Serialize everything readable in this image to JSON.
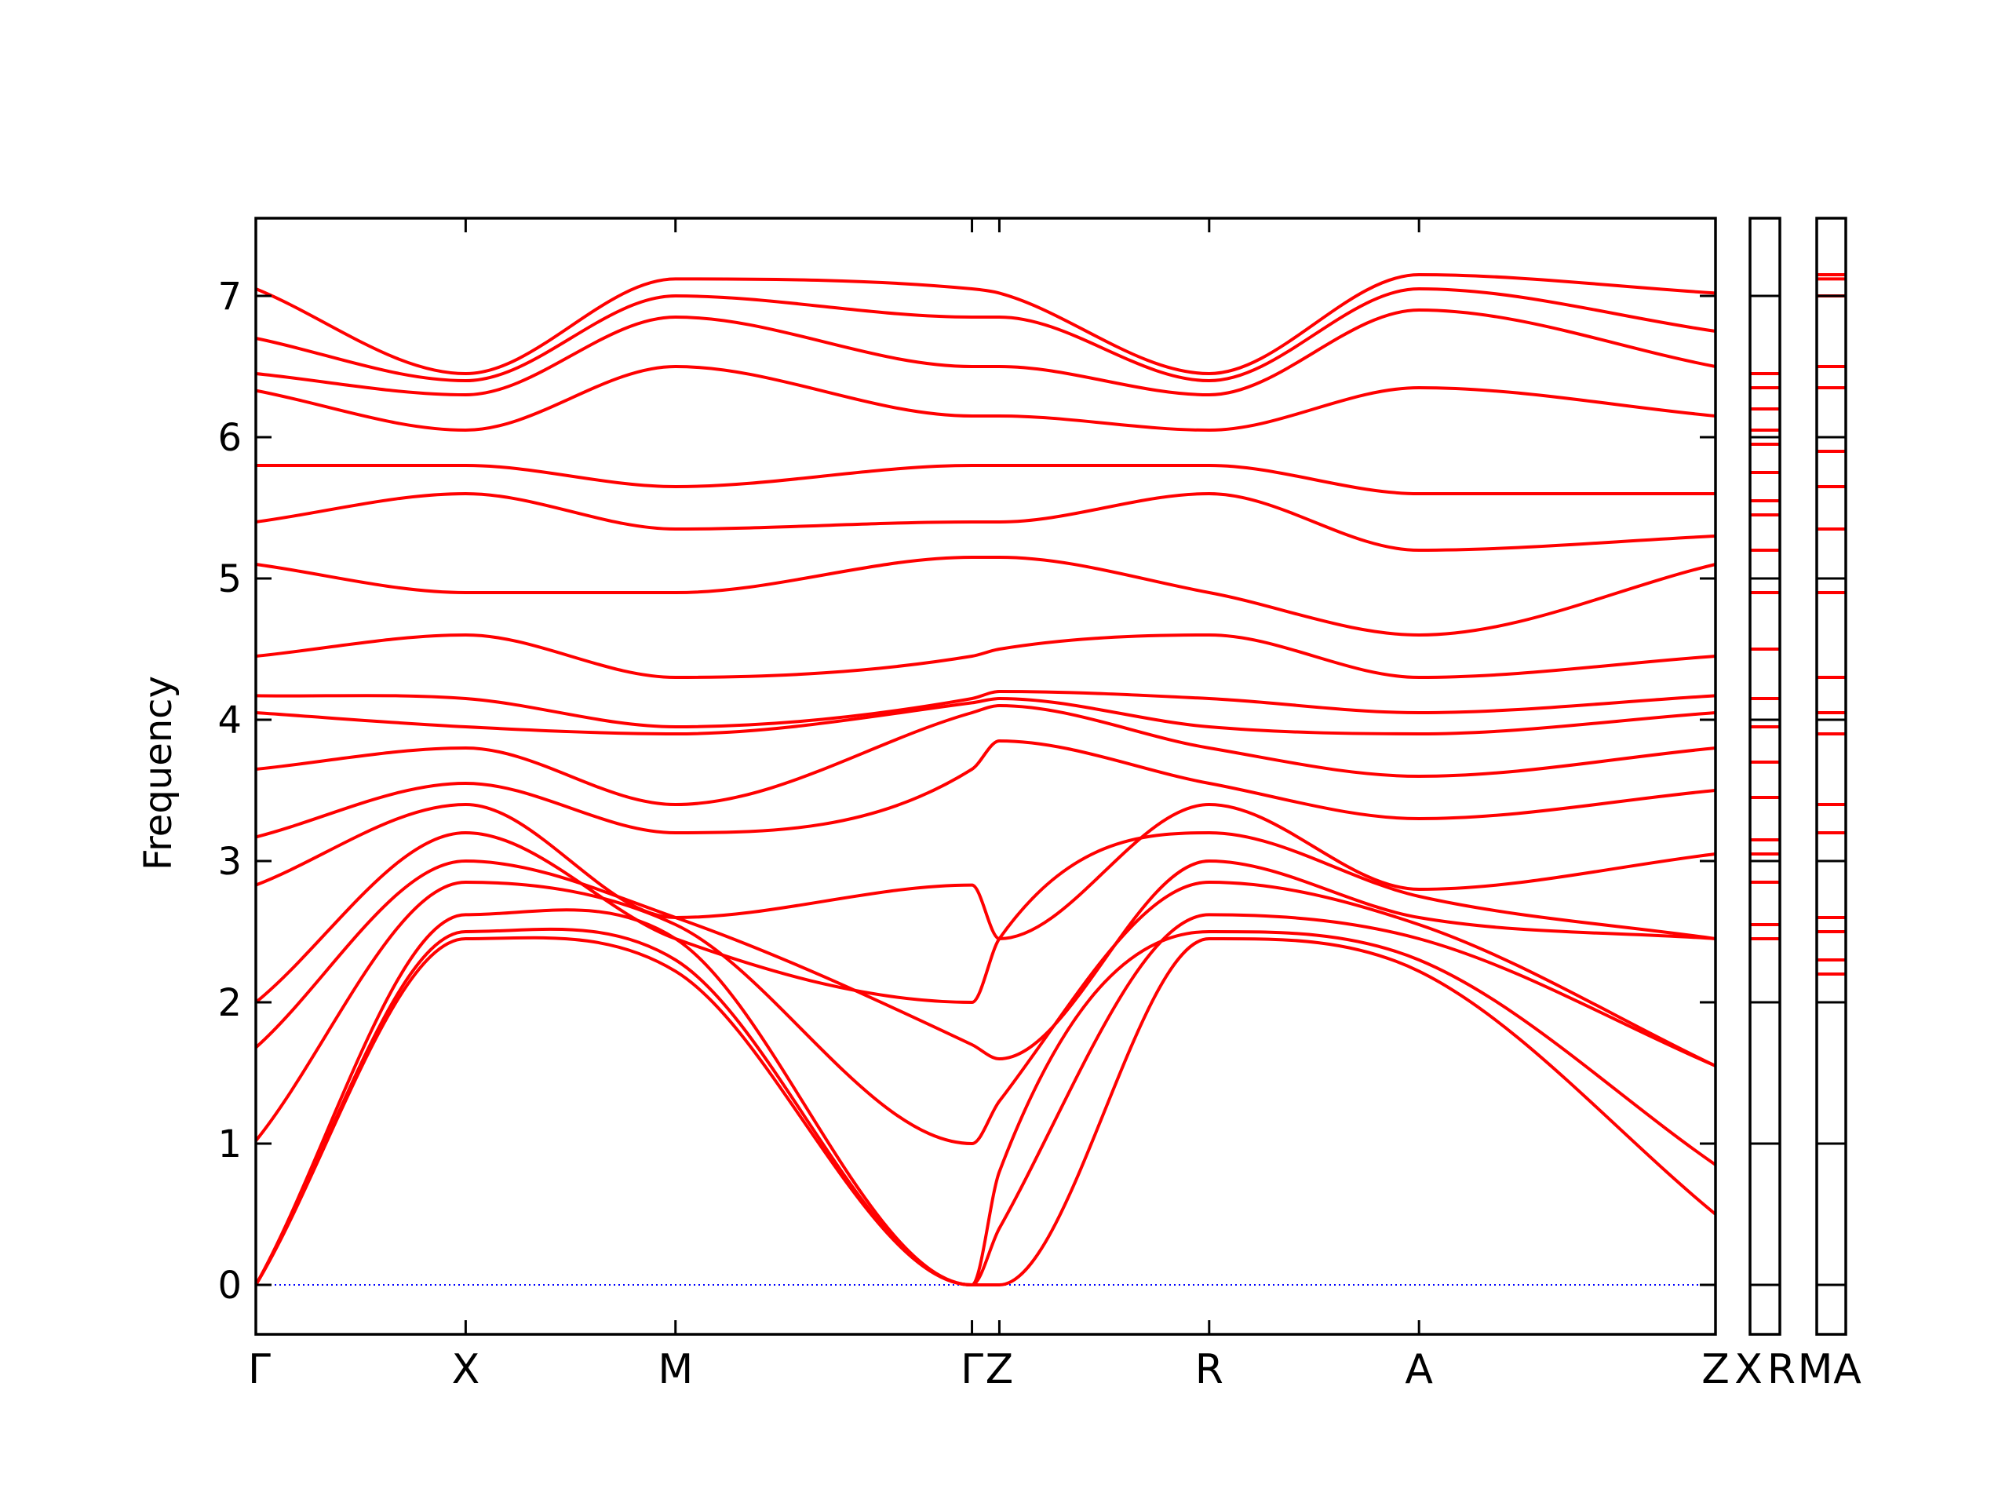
{
  "chart_data": {
    "type": "line",
    "title": "",
    "xlabel": "",
    "ylabel": "Frequency",
    "ylim": [
      -0.35,
      7.55
    ],
    "yticks": [
      0,
      1,
      2,
      3,
      4,
      5,
      6,
      7
    ],
    "grid": false,
    "legend": "none",
    "band_color": "#ff0000",
    "zero_line_color": "#0000ff",
    "main_panel": {
      "x_range": [
        0,
        3.2
      ],
      "kpoints": [
        {
          "label": "Γ",
          "x": 0.0
        },
        {
          "label": "X",
          "x": 0.46
        },
        {
          "label": "M",
          "x": 0.92
        },
        {
          "label": "Γ",
          "x": 1.57
        },
        {
          "label": "Z",
          "x": 1.63
        },
        {
          "label": "R",
          "x": 2.09
        },
        {
          "label": "A",
          "x": 2.55
        },
        {
          "label": "Z",
          "x": 3.2
        }
      ],
      "bands": [
        {
          "name": "",
          "x": [
            0,
            0.46,
            0.92,
            1.57,
            1.63,
            2.09,
            2.55,
            3.2
          ],
          "y": [
            0.0,
            2.45,
            2.22,
            0.0,
            0.0,
            2.45,
            2.22,
            0.5
          ]
        },
        {
          "name": "",
          "x": [
            0,
            0.46,
            0.92,
            1.57,
            1.63,
            2.09,
            2.55,
            3.2
          ],
          "y": [
            0.0,
            2.5,
            2.3,
            0.0,
            0.8,
            2.5,
            2.3,
            0.85
          ]
        },
        {
          "name": "",
          "x": [
            0,
            0.46,
            0.92,
            1.57,
            1.63,
            2.09,
            2.55,
            3.2
          ],
          "y": [
            0.0,
            2.62,
            2.45,
            0.0,
            0.4,
            2.62,
            2.45,
            1.55
          ]
        },
        {
          "name": "",
          "x": [
            0,
            0.46,
            0.92,
            1.57,
            1.63,
            2.09,
            2.55,
            3.2
          ],
          "y": [
            1.02,
            2.85,
            2.55,
            1.0,
            1.3,
            2.85,
            2.55,
            1.55
          ]
        },
        {
          "name": "",
          "x": [
            0,
            0.46,
            0.92,
            1.57,
            1.63,
            2.09,
            2.55,
            3.2
          ],
          "y": [
            1.68,
            3.0,
            2.6,
            1.7,
            1.6,
            3.0,
            2.6,
            2.45
          ]
        },
        {
          "name": "",
          "x": [
            0,
            0.46,
            0.92,
            1.57,
            1.63,
            2.09,
            2.55,
            3.2
          ],
          "y": [
            2.0,
            3.2,
            2.45,
            2.0,
            2.45,
            3.2,
            2.75,
            2.45
          ]
        },
        {
          "name": "",
          "x": [
            0,
            0.46,
            0.92,
            1.57,
            1.63,
            2.09,
            2.55,
            3.2
          ],
          "y": [
            2.83,
            3.4,
            2.6,
            2.83,
            2.45,
            3.4,
            2.8,
            3.05
          ]
        },
        {
          "name": "",
          "x": [
            0,
            0.46,
            0.92,
            1.57,
            1.63,
            2.09,
            2.55,
            3.2
          ],
          "y": [
            3.17,
            3.55,
            3.2,
            3.65,
            3.85,
            3.55,
            3.3,
            3.5
          ]
        },
        {
          "name": "",
          "x": [
            0,
            0.46,
            0.92,
            1.57,
            1.63,
            2.09,
            2.55,
            3.2
          ],
          "y": [
            3.65,
            3.8,
            3.4,
            4.05,
            4.1,
            3.8,
            3.6,
            3.8
          ]
        },
        {
          "name": "",
          "x": [
            0,
            0.46,
            0.92,
            1.57,
            1.63,
            2.09,
            2.55,
            3.2
          ],
          "y": [
            4.05,
            3.95,
            3.9,
            4.12,
            4.15,
            3.95,
            3.9,
            4.05
          ]
        },
        {
          "name": "",
          "x": [
            0,
            0.46,
            0.92,
            1.57,
            1.63,
            2.09,
            2.55,
            3.2
          ],
          "y": [
            4.17,
            4.15,
            3.95,
            4.15,
            4.2,
            4.15,
            4.05,
            4.17
          ]
        },
        {
          "name": "",
          "x": [
            0,
            0.46,
            0.92,
            1.57,
            1.63,
            2.09,
            2.55,
            3.2
          ],
          "y": [
            4.45,
            4.6,
            4.3,
            4.45,
            4.5,
            4.6,
            4.3,
            4.45
          ]
        },
        {
          "name": "",
          "x": [
            0,
            0.46,
            0.92,
            1.57,
            1.63,
            2.09,
            2.55,
            3.2
          ],
          "y": [
            5.1,
            4.9,
            4.9,
            5.15,
            5.15,
            4.9,
            4.6,
            5.1
          ]
        },
        {
          "name": "",
          "x": [
            0,
            0.46,
            0.92,
            1.57,
            1.63,
            2.09,
            2.55,
            3.2
          ],
          "y": [
            5.4,
            5.6,
            5.35,
            5.4,
            5.4,
            5.6,
            5.2,
            5.3
          ]
        },
        {
          "name": "",
          "x": [
            0,
            0.46,
            0.92,
            1.57,
            1.63,
            2.09,
            2.55,
            3.2
          ],
          "y": [
            5.8,
            5.8,
            5.65,
            5.8,
            5.8,
            5.8,
            5.6,
            5.6
          ]
        },
        {
          "name": "",
          "x": [
            0,
            0.46,
            0.92,
            1.57,
            1.63,
            2.09,
            2.55,
            3.2
          ],
          "y": [
            6.33,
            6.05,
            6.5,
            6.15,
            6.15,
            6.05,
            6.35,
            6.15
          ]
        },
        {
          "name": "",
          "x": [
            0,
            0.46,
            0.92,
            1.57,
            1.63,
            2.09,
            2.55,
            3.2
          ],
          "y": [
            6.45,
            6.3,
            6.85,
            6.5,
            6.5,
            6.3,
            6.9,
            6.5
          ]
        },
        {
          "name": "",
          "x": [
            0,
            0.46,
            0.92,
            1.57,
            1.63,
            2.09,
            2.55,
            3.2
          ],
          "y": [
            6.7,
            6.4,
            7.0,
            6.85,
            6.85,
            6.4,
            7.05,
            6.75
          ]
        },
        {
          "name": "",
          "x": [
            0,
            0.46,
            0.92,
            1.57,
            1.63,
            2.09,
            2.55,
            3.2
          ],
          "y": [
            7.05,
            6.45,
            7.12,
            7.05,
            7.02,
            6.45,
            7.15,
            7.02
          ]
        }
      ]
    },
    "side_panels": [
      {
        "labels": [
          "X",
          "R"
        ],
        "levels": [
          2.45,
          2.55,
          2.85,
          3.05,
          3.15,
          3.45,
          3.7,
          3.95,
          4.15,
          4.5,
          4.9,
          5.2,
          5.45,
          5.55,
          5.75,
          5.95,
          6.05,
          6.2,
          6.35,
          6.45
        ]
      },
      {
        "labels": [
          "M",
          "A"
        ],
        "levels": [
          2.2,
          2.3,
          2.5,
          2.6,
          3.2,
          3.4,
          3.9,
          4.05,
          4.3,
          4.9,
          5.35,
          5.65,
          5.9,
          6.35,
          6.5,
          7.0,
          7.12,
          7.15
        ]
      }
    ]
  }
}
